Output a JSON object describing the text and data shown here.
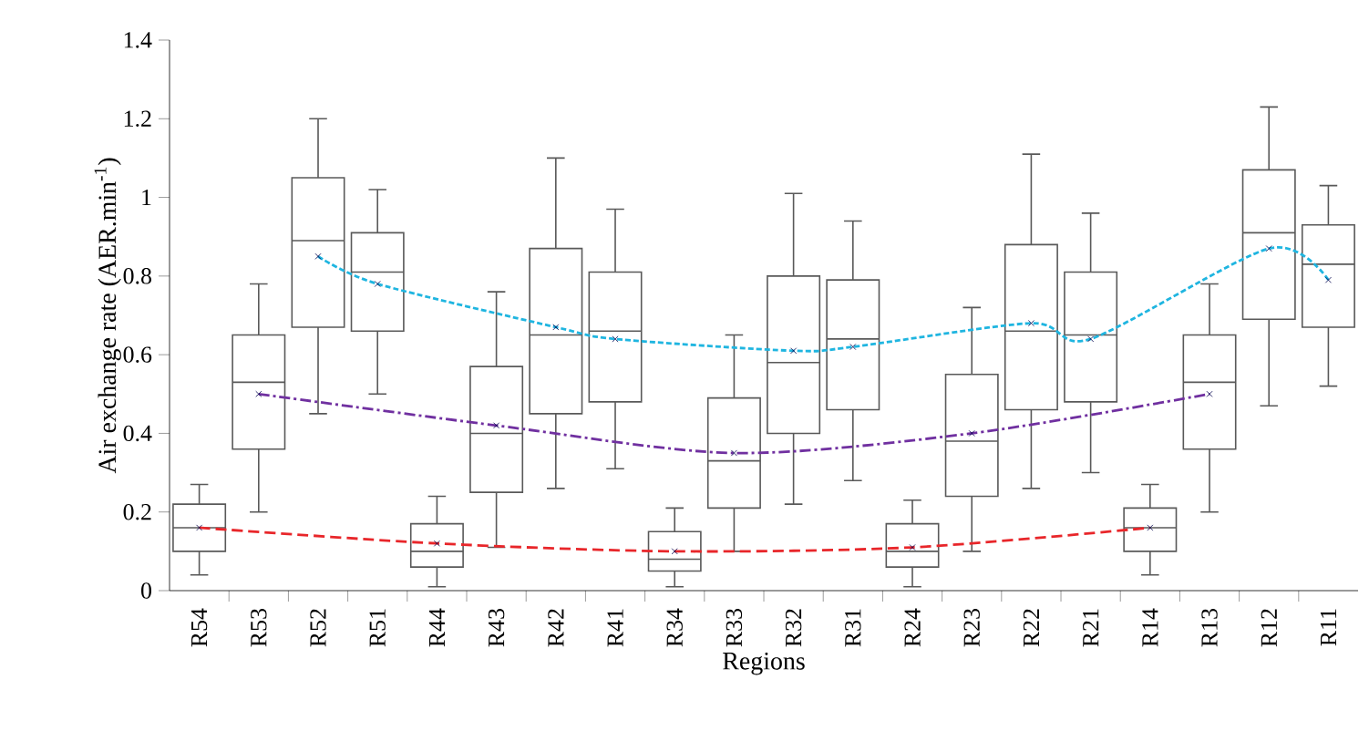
{
  "chart_data": {
    "type": "box",
    "xlabel": "Regions",
    "ylabel": "Air exchange rate (AER.min$^{-1}$)",
    "categories": [
      "R54",
      "R53",
      "R52",
      "R51",
      "R44",
      "R43",
      "R42",
      "R41",
      "R34",
      "R33",
      "R32",
      "R31",
      "R24",
      "R23",
      "R22",
      "R21",
      "R14",
      "R13",
      "R12",
      "R11"
    ],
    "boxes": [
      {
        "low": 0.04,
        "q1": 0.1,
        "median": 0.16,
        "q3": 0.22,
        "high": 0.27,
        "mean": 0.16
      },
      {
        "low": 0.2,
        "q1": 0.36,
        "median": 0.53,
        "q3": 0.65,
        "high": 0.78,
        "mean": 0.5
      },
      {
        "low": 0.45,
        "q1": 0.67,
        "median": 0.89,
        "q3": 1.05,
        "high": 1.2,
        "mean": 0.85
      },
      {
        "low": 0.5,
        "q1": 0.66,
        "median": 0.81,
        "q3": 0.91,
        "high": 1.02,
        "mean": 0.78
      },
      {
        "low": 0.01,
        "q1": 0.06,
        "median": 0.1,
        "q3": 0.17,
        "high": 0.24,
        "mean": 0.12
      },
      {
        "low": 0.11,
        "q1": 0.25,
        "median": 0.4,
        "q3": 0.57,
        "high": 0.76,
        "mean": 0.42
      },
      {
        "low": 0.26,
        "q1": 0.45,
        "median": 0.65,
        "q3": 0.87,
        "high": 1.1,
        "mean": 0.67
      },
      {
        "low": 0.31,
        "q1": 0.48,
        "median": 0.66,
        "q3": 0.81,
        "high": 0.97,
        "mean": 0.64
      },
      {
        "low": 0.01,
        "q1": 0.05,
        "median": 0.08,
        "q3": 0.15,
        "high": 0.21,
        "mean": 0.1
      },
      {
        "low": 0.1,
        "q1": 0.21,
        "median": 0.33,
        "q3": 0.49,
        "high": 0.65,
        "mean": 0.35
      },
      {
        "low": 0.22,
        "q1": 0.4,
        "median": 0.58,
        "q3": 0.8,
        "high": 1.01,
        "mean": 0.61
      },
      {
        "low": 0.28,
        "q1": 0.46,
        "median": 0.64,
        "q3": 0.79,
        "high": 0.94,
        "mean": 0.62
      },
      {
        "low": 0.01,
        "q1": 0.06,
        "median": 0.1,
        "q3": 0.17,
        "high": 0.23,
        "mean": 0.11
      },
      {
        "low": 0.1,
        "q1": 0.24,
        "median": 0.38,
        "q3": 0.55,
        "high": 0.72,
        "mean": 0.4
      },
      {
        "low": 0.26,
        "q1": 0.46,
        "median": 0.66,
        "q3": 0.88,
        "high": 1.11,
        "mean": 0.68
      },
      {
        "low": 0.3,
        "q1": 0.48,
        "median": 0.65,
        "q3": 0.81,
        "high": 0.96,
        "mean": 0.64
      },
      {
        "low": 0.04,
        "q1": 0.1,
        "median": 0.16,
        "q3": 0.21,
        "high": 0.27,
        "mean": 0.16
      },
      {
        "low": 0.2,
        "q1": 0.36,
        "median": 0.53,
        "q3": 0.65,
        "high": 0.78,
        "mean": 0.5
      },
      {
        "low": 0.47,
        "q1": 0.69,
        "median": 0.91,
        "q3": 1.07,
        "high": 1.23,
        "mean": 0.87
      },
      {
        "low": 0.52,
        "q1": 0.67,
        "median": 0.83,
        "q3": 0.93,
        "high": 1.03,
        "mean": 0.79
      }
    ],
    "series": [
      {
        "type": "line",
        "color": "#e8262a",
        "line_style": "dashed",
        "values": [
          0.16,
          null,
          null,
          null,
          0.12,
          null,
          null,
          null,
          0.1,
          null,
          null,
          null,
          0.11,
          null,
          null,
          null,
          0.16,
          null,
          null,
          null
        ]
      },
      {
        "type": "line",
        "color": "#7030a0",
        "line_style": "dashdot",
        "values": [
          null,
          0.5,
          null,
          null,
          null,
          0.42,
          null,
          null,
          null,
          0.35,
          null,
          null,
          null,
          0.4,
          null,
          null,
          null,
          0.5,
          null,
          null
        ]
      },
      {
        "type": "line",
        "color": "#1fb5e0",
        "line_style": "dotted",
        "values": [
          null,
          null,
          0.85,
          0.78,
          null,
          null,
          0.67,
          0.64,
          null,
          null,
          0.61,
          0.62,
          null,
          null,
          0.68,
          0.64,
          null,
          null,
          0.87,
          0.79
        ]
      }
    ],
    "ylim": [
      0,
      1.4
    ],
    "yticks": [
      0,
      0.2,
      0.4,
      0.6,
      0.8,
      1,
      1.2,
      1.4
    ],
    "grid": false
  }
}
